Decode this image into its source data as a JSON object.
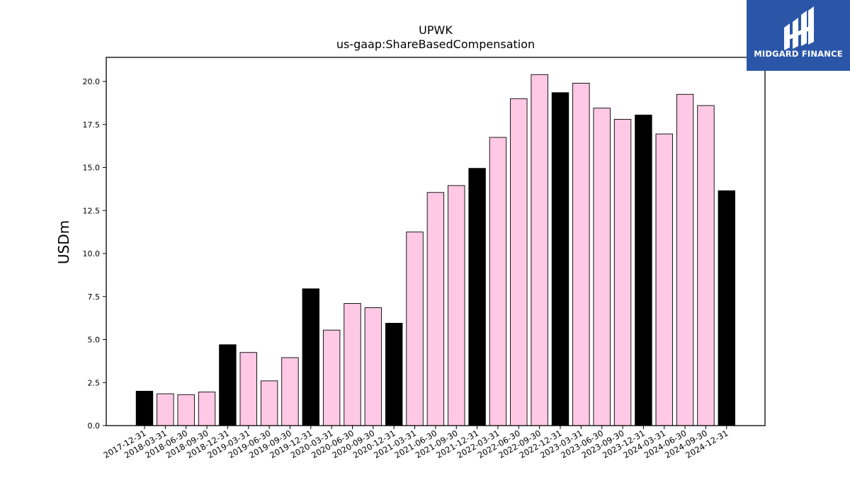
{
  "logo": {
    "text": "MIDGARD FINANCE"
  },
  "colors": {
    "annual": "#000000",
    "quarterly": "#ffc8e4",
    "logo_bg": "#2b56a8"
  },
  "chart_data": {
    "type": "bar",
    "title": "UPWK",
    "subtitle": "us-gaap:ShareBasedCompensation",
    "xlabel": "",
    "ylabel": "USDm",
    "ylim": [
      0,
      21.4
    ],
    "yticks": [
      "0.0",
      "2.5",
      "5.0",
      "7.5",
      "10.0",
      "12.5",
      "15.0",
      "17.5",
      "20.0"
    ],
    "grid": false,
    "legend": "none",
    "categories": [
      "2017-12-31",
      "2018-03-31",
      "2018-06-30",
      "2018-09-30",
      "2018-12-31",
      "2019-03-31",
      "2019-06-30",
      "2019-09-30",
      "2019-12-31",
      "2020-03-31",
      "2020-06-30",
      "2020-09-30",
      "2020-12-31",
      "2021-03-31",
      "2021-06-30",
      "2021-09-30",
      "2021-12-31",
      "2022-03-31",
      "2022-06-30",
      "2022-09-30",
      "2022-12-31",
      "2023-03-31",
      "2023-06-30",
      "2023-09-30",
      "2023-12-31",
      "2024-03-31",
      "2024-06-30",
      "2024-09-30",
      "2024-12-31"
    ],
    "values": [
      2.0,
      1.85,
      1.8,
      1.95,
      4.7,
      4.25,
      2.6,
      3.95,
      7.95,
      5.55,
      7.1,
      6.85,
      5.95,
      11.25,
      13.55,
      13.95,
      14.95,
      16.75,
      19.0,
      20.4,
      19.35,
      19.9,
      18.45,
      17.8,
      18.05,
      16.95,
      19.25,
      18.6,
      13.65
    ],
    "annual": [
      true,
      false,
      false,
      false,
      true,
      false,
      false,
      false,
      true,
      false,
      false,
      false,
      true,
      false,
      false,
      false,
      true,
      false,
      false,
      false,
      true,
      false,
      false,
      false,
      true,
      false,
      false,
      false,
      true
    ]
  }
}
